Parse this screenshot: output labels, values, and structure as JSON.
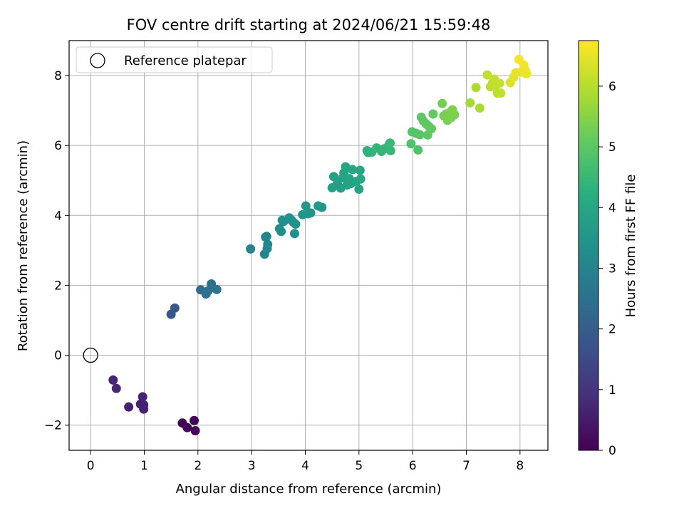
{
  "chart_data": {
    "type": "scatter",
    "title": "FOV centre drift starting at 2024/06/21 15:59:48",
    "xlabel": "Angular distance from reference (arcmin)",
    "ylabel": "Rotation from reference (arcmin)",
    "xlim": [
      -0.4,
      8.52
    ],
    "ylim": [
      -2.72,
      9.0
    ],
    "xticks": [
      0,
      1,
      2,
      3,
      4,
      5,
      6,
      7,
      8
    ],
    "yticks": [
      -2,
      0,
      2,
      4,
      6,
      8
    ],
    "ytick_labels": [
      "−2",
      "0",
      "2",
      "4",
      "6",
      "8"
    ],
    "grid": true,
    "legend": {
      "placement": "top-left",
      "entries": [
        "Reference platepar"
      ]
    },
    "reference_point": {
      "x": 0,
      "y": 0,
      "label": "Reference platepar"
    },
    "colorbar": {
      "label": "Hours from first FF file",
      "colormap": "viridis",
      "range": [
        0,
        6.75
      ],
      "ticks": [
        0,
        1,
        2,
        3,
        4,
        5,
        6
      ]
    },
    "points": [
      {
        "x": 1.71,
        "y": -1.94,
        "c": 0.05
      },
      {
        "x": 1.8,
        "y": -2.07,
        "c": 0.08
      },
      {
        "x": 1.93,
        "y": -1.87,
        "c": 0.1
      },
      {
        "x": 1.95,
        "y": -2.16,
        "c": 0.12
      },
      {
        "x": 0.42,
        "y": -0.71,
        "c": 0.7
      },
      {
        "x": 0.48,
        "y": -0.95,
        "c": 0.75
      },
      {
        "x": 0.71,
        "y": -1.48,
        "c": 0.6
      },
      {
        "x": 0.93,
        "y": -1.4,
        "c": 0.65
      },
      {
        "x": 0.97,
        "y": -1.19,
        "c": 0.68
      },
      {
        "x": 0.99,
        "y": -1.42,
        "c": 0.62
      },
      {
        "x": 0.99,
        "y": -1.54,
        "c": 0.66
      },
      {
        "x": 1.5,
        "y": 1.17,
        "c": 1.8
      },
      {
        "x": 1.57,
        "y": 1.35,
        "c": 1.85
      },
      {
        "x": 2.05,
        "y": 1.87,
        "c": 2.4
      },
      {
        "x": 2.15,
        "y": 1.75,
        "c": 2.45
      },
      {
        "x": 2.19,
        "y": 1.84,
        "c": 2.5
      },
      {
        "x": 2.25,
        "y": 2.04,
        "c": 2.48
      },
      {
        "x": 2.35,
        "y": 1.88,
        "c": 2.55
      },
      {
        "x": 2.98,
        "y": 3.04,
        "c": 3.0
      },
      {
        "x": 3.24,
        "y": 2.89,
        "c": 3.05
      },
      {
        "x": 3.26,
        "y": 3.38,
        "c": 3.1
      },
      {
        "x": 3.29,
        "y": 3.05,
        "c": 3.12
      },
      {
        "x": 3.3,
        "y": 3.17,
        "c": 3.08
      },
      {
        "x": 3.28,
        "y": 3.4,
        "c": 3.06
      },
      {
        "x": 3.52,
        "y": 3.62,
        "c": 3.25
      },
      {
        "x": 3.55,
        "y": 3.54,
        "c": 3.28
      },
      {
        "x": 3.57,
        "y": 3.86,
        "c": 3.3
      },
      {
        "x": 3.6,
        "y": 3.83,
        "c": 3.32
      },
      {
        "x": 3.7,
        "y": 3.93,
        "c": 3.38
      },
      {
        "x": 3.74,
        "y": 3.87,
        "c": 3.4
      },
      {
        "x": 3.78,
        "y": 3.8,
        "c": 3.42
      },
      {
        "x": 3.82,
        "y": 3.75,
        "c": 3.43
      },
      {
        "x": 3.8,
        "y": 3.48,
        "c": 3.36
      },
      {
        "x": 3.95,
        "y": 4.02,
        "c": 3.5
      },
      {
        "x": 4.01,
        "y": 4.27,
        "c": 3.55
      },
      {
        "x": 4.05,
        "y": 4.05,
        "c": 3.52
      },
      {
        "x": 4.1,
        "y": 4.07,
        "c": 3.53
      },
      {
        "x": 4.24,
        "y": 4.27,
        "c": 3.6
      },
      {
        "x": 4.31,
        "y": 4.23,
        "c": 3.62
      },
      {
        "x": 4.5,
        "y": 4.79,
        "c": 3.8
      },
      {
        "x": 4.53,
        "y": 5.11,
        "c": 3.85
      },
      {
        "x": 4.6,
        "y": 4.95,
        "c": 3.88
      },
      {
        "x": 4.66,
        "y": 4.78,
        "c": 3.82
      },
      {
        "x": 4.7,
        "y": 5.08,
        "c": 3.9
      },
      {
        "x": 4.72,
        "y": 5.22,
        "c": 3.92
      },
      {
        "x": 4.75,
        "y": 5.39,
        "c": 3.95
      },
      {
        "x": 4.78,
        "y": 4.87,
        "c": 3.87
      },
      {
        "x": 4.82,
        "y": 5.05,
        "c": 3.93
      },
      {
        "x": 4.85,
        "y": 4.91,
        "c": 3.91
      },
      {
        "x": 4.88,
        "y": 5.31,
        "c": 3.97
      },
      {
        "x": 4.95,
        "y": 4.97,
        "c": 3.96
      },
      {
        "x": 5.0,
        "y": 4.75,
        "c": 3.89
      },
      {
        "x": 5.02,
        "y": 5.29,
        "c": 4.0
      },
      {
        "x": 5.03,
        "y": 5.04,
        "c": 3.98
      },
      {
        "x": 5.15,
        "y": 5.85,
        "c": 4.3
      },
      {
        "x": 5.17,
        "y": 5.8,
        "c": 4.32
      },
      {
        "x": 5.24,
        "y": 5.81,
        "c": 4.35
      },
      {
        "x": 5.33,
        "y": 5.93,
        "c": 4.4
      },
      {
        "x": 5.42,
        "y": 5.83,
        "c": 4.42
      },
      {
        "x": 5.48,
        "y": 5.91,
        "c": 4.45
      },
      {
        "x": 5.56,
        "y": 6.03,
        "c": 4.5
      },
      {
        "x": 5.59,
        "y": 5.85,
        "c": 4.48
      },
      {
        "x": 5.58,
        "y": 6.07,
        "c": 4.52
      },
      {
        "x": 5.97,
        "y": 6.05,
        "c": 4.8
      },
      {
        "x": 5.99,
        "y": 6.39,
        "c": 4.9
      },
      {
        "x": 6.06,
        "y": 6.35,
        "c": 4.92
      },
      {
        "x": 6.1,
        "y": 5.87,
        "c": 4.85
      },
      {
        "x": 6.13,
        "y": 6.31,
        "c": 4.95
      },
      {
        "x": 6.16,
        "y": 6.81,
        "c": 5.0
      },
      {
        "x": 6.2,
        "y": 6.7,
        "c": 5.02
      },
      {
        "x": 6.25,
        "y": 6.62,
        "c": 5.05
      },
      {
        "x": 6.28,
        "y": 6.3,
        "c": 5.0
      },
      {
        "x": 6.3,
        "y": 6.55,
        "c": 5.05
      },
      {
        "x": 6.35,
        "y": 6.48,
        "c": 5.08
      },
      {
        "x": 6.38,
        "y": 6.9,
        "c": 5.1
      },
      {
        "x": 6.55,
        "y": 7.2,
        "c": 5.3
      },
      {
        "x": 6.58,
        "y": 6.85,
        "c": 5.32
      },
      {
        "x": 6.62,
        "y": 6.9,
        "c": 5.35
      },
      {
        "x": 6.65,
        "y": 6.72,
        "c": 5.33
      },
      {
        "x": 6.7,
        "y": 6.95,
        "c": 5.38
      },
      {
        "x": 6.74,
        "y": 7.02,
        "c": 5.4
      },
      {
        "x": 6.78,
        "y": 6.88,
        "c": 5.42
      },
      {
        "x": 6.72,
        "y": 6.8,
        "c": 5.36
      },
      {
        "x": 7.07,
        "y": 7.22,
        "c": 5.8
      },
      {
        "x": 7.18,
        "y": 7.66,
        "c": 5.9
      },
      {
        "x": 7.25,
        "y": 7.07,
        "c": 5.85
      },
      {
        "x": 7.39,
        "y": 8.02,
        "c": 6.1
      },
      {
        "x": 7.45,
        "y": 7.68,
        "c": 6.05
      },
      {
        "x": 7.49,
        "y": 7.8,
        "c": 6.12
      },
      {
        "x": 7.52,
        "y": 7.9,
        "c": 6.15
      },
      {
        "x": 7.55,
        "y": 7.72,
        "c": 6.12
      },
      {
        "x": 7.58,
        "y": 7.5,
        "c": 6.08
      },
      {
        "x": 7.62,
        "y": 7.78,
        "c": 6.15
      },
      {
        "x": 7.64,
        "y": 7.5,
        "c": 6.1
      },
      {
        "x": 7.82,
        "y": 7.8,
        "c": 6.4
      },
      {
        "x": 7.88,
        "y": 7.95,
        "c": 6.45
      },
      {
        "x": 7.92,
        "y": 8.08,
        "c": 6.5
      },
      {
        "x": 7.98,
        "y": 8.46,
        "c": 6.65
      },
      {
        "x": 8.02,
        "y": 8.1,
        "c": 6.55
      },
      {
        "x": 8.07,
        "y": 8.3,
        "c": 6.62
      },
      {
        "x": 8.1,
        "y": 8.15,
        "c": 6.6
      },
      {
        "x": 8.12,
        "y": 8.05,
        "c": 6.58
      }
    ]
  }
}
